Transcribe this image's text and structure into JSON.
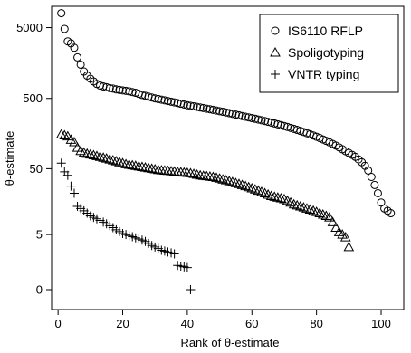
{
  "chart_data": {
    "type": "scatter",
    "xlabel": "Rank of θ-estimate",
    "ylabel": "θ-estimate",
    "xlim": [
      -2,
      107
    ],
    "y_scale": "log(1+θ)",
    "ylim": [
      0,
      10000
    ],
    "x_ticks": [
      0,
      20,
      40,
      60,
      80,
      100
    ],
    "y_ticks": [
      0,
      5,
      50,
      500,
      5000
    ],
    "grid": false,
    "legend_position": "top-right",
    "series": [
      {
        "name": "IS6110 RFLP",
        "marker": "circle",
        "values": [
          8000,
          4800,
          3200,
          3000,
          2600,
          1900,
          1500,
          1200,
          1050,
          950,
          870,
          800,
          760,
          740,
          720,
          700,
          690,
          670,
          660,
          650,
          640,
          630,
          615,
          600,
          580,
          560,
          545,
          530,
          515,
          500,
          490,
          480,
          470,
          460,
          450,
          440,
          430,
          420,
          410,
          400,
          393,
          386,
          379,
          372,
          365,
          358,
          351,
          344,
          337,
          330,
          323,
          316,
          309,
          302,
          295,
          288,
          281,
          275,
          269,
          263,
          257,
          251,
          245,
          239,
          233,
          227,
          221,
          215,
          209,
          203,
          197,
          191,
          185,
          179,
          173,
          167,
          161,
          155,
          149,
          143,
          137,
          131,
          125,
          119,
          113,
          107,
          101,
          95,
          89,
          84,
          79,
          74,
          68,
          62,
          55,
          47,
          38,
          29,
          22,
          16,
          13,
          12,
          11
        ]
      },
      {
        "name": "Spoligotyping",
        "marker": "triangle",
        "values": [
          155,
          150,
          145,
          130,
          120,
          100,
          90,
          85,
          82,
          80,
          78,
          76,
          74,
          72,
          70,
          68,
          66,
          64,
          62,
          60,
          58,
          57,
          56,
          55,
          54,
          53,
          52,
          51,
          50,
          49,
          48,
          47.5,
          47,
          46.5,
          46,
          45.5,
          45,
          44.5,
          44,
          43.5,
          43,
          42,
          41,
          40,
          39.5,
          39,
          38.5,
          38,
          37,
          36,
          35,
          34,
          33,
          32,
          31,
          30,
          29,
          28,
          27,
          26,
          25,
          24,
          23,
          22,
          21,
          20,
          19.5,
          19,
          18.5,
          18,
          17,
          16,
          15,
          14.5,
          14,
          13.5,
          13,
          12.5,
          12,
          11.5,
          11,
          10.5,
          10,
          9.5,
          8,
          6.5,
          5.5,
          5,
          4.5,
          3
        ]
      },
      {
        "name": "VNTR typing",
        "marker": "plus",
        "values": [
          60,
          45,
          40,
          28,
          22,
          14,
          13,
          12,
          11,
          10,
          9.5,
          9,
          8.5,
          8,
          7.5,
          7,
          6.5,
          6,
          5.6,
          5.2,
          5,
          4.8,
          4.6,
          4.4,
          4.2,
          4,
          3.8,
          3.5,
          3.2,
          3,
          2.8,
          2.6,
          2.5,
          2.4,
          2.3,
          2.2,
          1.2,
          1.15,
          1.1,
          1.05,
          0
        ]
      }
    ]
  }
}
